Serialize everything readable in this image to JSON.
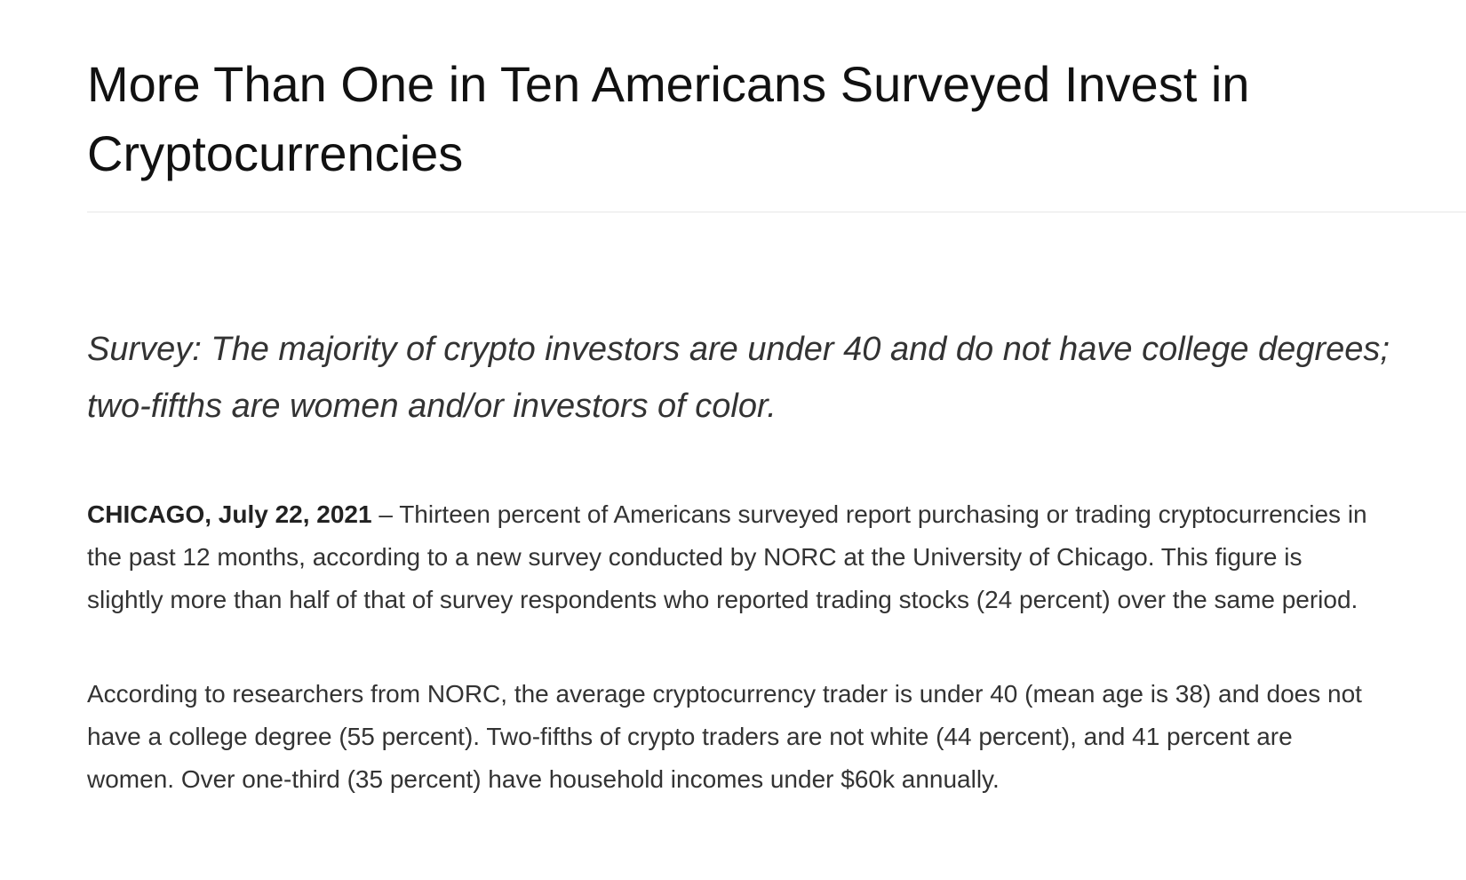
{
  "article": {
    "title": "More Than One in Ten Americans Surveyed Invest in Cryptocurrencies",
    "subtitle": "Survey: The majority of crypto investors are under 40 and do not have college degrees; two-fifths are women and/or investors of color.",
    "paragraphs": [
      {
        "dateline": "CHICAGO, July 22, 2021",
        "text": " – Thirteen percent of Americans surveyed report purchasing or trading cryptocurrencies in the past 12 months, according to a new survey conducted by NORC at the University of Chicago. This figure is slightly more than half of that of survey respondents who reported trading stocks (24 percent) over the same period."
      },
      {
        "text": "According to researchers from NORC, the average cryptocurrency trader is under 40 (mean age is 38) and does not have a college degree (55 percent). Two-fifths of crypto traders are not white (44 percent), and 41 percent are women. Over one-third (35 percent) have household incomes under $60k annually."
      }
    ]
  }
}
